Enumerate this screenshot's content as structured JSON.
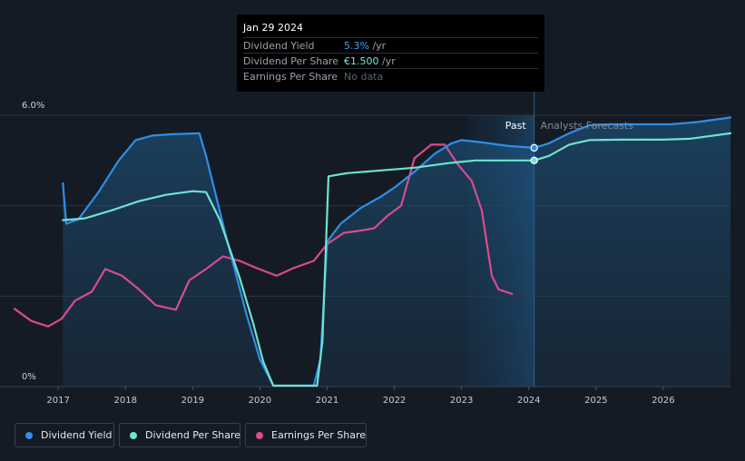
{
  "tooltip": {
    "date": "Jan 29 2024",
    "rows": [
      {
        "label": "Dividend Yield",
        "value": "5.3%",
        "unit": " /yr",
        "color": "#3fa2f7"
      },
      {
        "label": "Dividend Per Share",
        "value": "€1.500",
        "unit": " /yr",
        "color": "#7de8d0"
      },
      {
        "label": "Earnings Per Share",
        "value": "No data",
        "unit": "",
        "color": "#5b626b"
      }
    ]
  },
  "labels": {
    "past": "Past",
    "forecast": "Analysts Forecasts"
  },
  "legend": [
    {
      "label": "Dividend Yield",
      "color": "#2e8ee8"
    },
    {
      "label": "Dividend Per Share",
      "color": "#6fe3cf"
    },
    {
      "label": "Earnings Per Share",
      "color": "#d94b8d"
    }
  ],
  "chart_data": {
    "type": "line",
    "x_range": [
      2016.35,
      2027.0
    ],
    "y_range": [
      0,
      6.0
    ],
    "y_ticks": [
      {
        "value": 6.0,
        "label": "6.0%"
      },
      {
        "value": 0,
        "label": "0%"
      }
    ],
    "x_ticks": [
      2017,
      2018,
      2019,
      2020,
      2021,
      2022,
      2023,
      2024,
      2025,
      2026
    ],
    "past_end": 2024.08,
    "forecast_band_start": 2023.08,
    "series": [
      {
        "name": "Dividend Yield",
        "color": "#2e8ee8",
        "fill": true,
        "points": [
          [
            2017.07,
            4.5
          ],
          [
            2017.12,
            3.6
          ],
          [
            2017.3,
            3.7
          ],
          [
            2017.6,
            4.3
          ],
          [
            2017.9,
            5.0
          ],
          [
            2018.15,
            5.45
          ],
          [
            2018.4,
            5.55
          ],
          [
            2018.7,
            5.58
          ],
          [
            2019.1,
            5.6
          ],
          [
            2019.2,
            5.1
          ],
          [
            2019.5,
            3.3
          ],
          [
            2019.8,
            1.6
          ],
          [
            2020.0,
            0.6
          ],
          [
            2020.2,
            0.02
          ],
          [
            2020.8,
            0.02
          ],
          [
            2020.9,
            0.6
          ],
          [
            2021.0,
            3.2
          ],
          [
            2021.2,
            3.6
          ],
          [
            2021.5,
            3.95
          ],
          [
            2021.8,
            4.2
          ],
          [
            2022.0,
            4.4
          ],
          [
            2022.3,
            4.75
          ],
          [
            2022.6,
            5.15
          ],
          [
            2022.85,
            5.38
          ],
          [
            2023.0,
            5.45
          ],
          [
            2023.3,
            5.4
          ],
          [
            2023.7,
            5.32
          ],
          [
            2024.08,
            5.28
          ],
          [
            2024.3,
            5.38
          ],
          [
            2024.6,
            5.6
          ],
          [
            2024.9,
            5.78
          ],
          [
            2025.2,
            5.8
          ],
          [
            2025.6,
            5.8
          ],
          [
            2026.1,
            5.8
          ],
          [
            2026.5,
            5.85
          ],
          [
            2027.0,
            5.95
          ]
        ]
      },
      {
        "name": "Dividend Per Share",
        "color": "#6fe3cf",
        "fill": false,
        "points": [
          [
            2017.07,
            3.68
          ],
          [
            2017.4,
            3.72
          ],
          [
            2017.8,
            3.9
          ],
          [
            2018.2,
            4.1
          ],
          [
            2018.6,
            4.24
          ],
          [
            2019.0,
            4.32
          ],
          [
            2019.2,
            4.3
          ],
          [
            2019.4,
            3.7
          ],
          [
            2019.7,
            2.4
          ],
          [
            2019.9,
            1.4
          ],
          [
            2020.05,
            0.55
          ],
          [
            2020.2,
            0.02
          ],
          [
            2020.85,
            0.02
          ],
          [
            2020.93,
            1.0
          ],
          [
            2021.02,
            4.65
          ],
          [
            2021.3,
            4.72
          ],
          [
            2021.8,
            4.78
          ],
          [
            2022.3,
            4.84
          ],
          [
            2022.8,
            4.94
          ],
          [
            2023.2,
            5.0
          ],
          [
            2023.6,
            5.0
          ],
          [
            2024.08,
            5.0
          ],
          [
            2024.3,
            5.1
          ],
          [
            2024.6,
            5.35
          ],
          [
            2024.9,
            5.45
          ],
          [
            2025.4,
            5.46
          ],
          [
            2026.0,
            5.46
          ],
          [
            2026.4,
            5.48
          ],
          [
            2027.0,
            5.6
          ]
        ]
      },
      {
        "name": "Earnings Per Share",
        "color": "#d94b8d",
        "fill": false,
        "points": [
          [
            2016.35,
            1.72
          ],
          [
            2016.6,
            1.45
          ],
          [
            2016.85,
            1.33
          ],
          [
            2017.05,
            1.5
          ],
          [
            2017.25,
            1.9
          ],
          [
            2017.5,
            2.1
          ],
          [
            2017.7,
            2.6
          ],
          [
            2017.95,
            2.45
          ],
          [
            2018.2,
            2.15
          ],
          [
            2018.45,
            1.8
          ],
          [
            2018.75,
            1.7
          ],
          [
            2018.95,
            2.35
          ],
          [
            2019.2,
            2.6
          ],
          [
            2019.45,
            2.88
          ],
          [
            2019.7,
            2.78
          ],
          [
            2019.95,
            2.62
          ],
          [
            2020.25,
            2.45
          ],
          [
            2020.5,
            2.62
          ],
          [
            2020.8,
            2.78
          ],
          [
            2021.0,
            3.15
          ],
          [
            2021.25,
            3.4
          ],
          [
            2021.5,
            3.45
          ],
          [
            2021.7,
            3.5
          ],
          [
            2021.9,
            3.78
          ],
          [
            2022.1,
            4.0
          ],
          [
            2022.3,
            5.05
          ],
          [
            2022.55,
            5.35
          ],
          [
            2022.75,
            5.35
          ],
          [
            2022.95,
            4.9
          ],
          [
            2023.15,
            4.55
          ],
          [
            2023.3,
            3.9
          ],
          [
            2023.45,
            2.45
          ],
          [
            2023.55,
            2.15
          ],
          [
            2023.75,
            2.05
          ]
        ]
      }
    ]
  }
}
